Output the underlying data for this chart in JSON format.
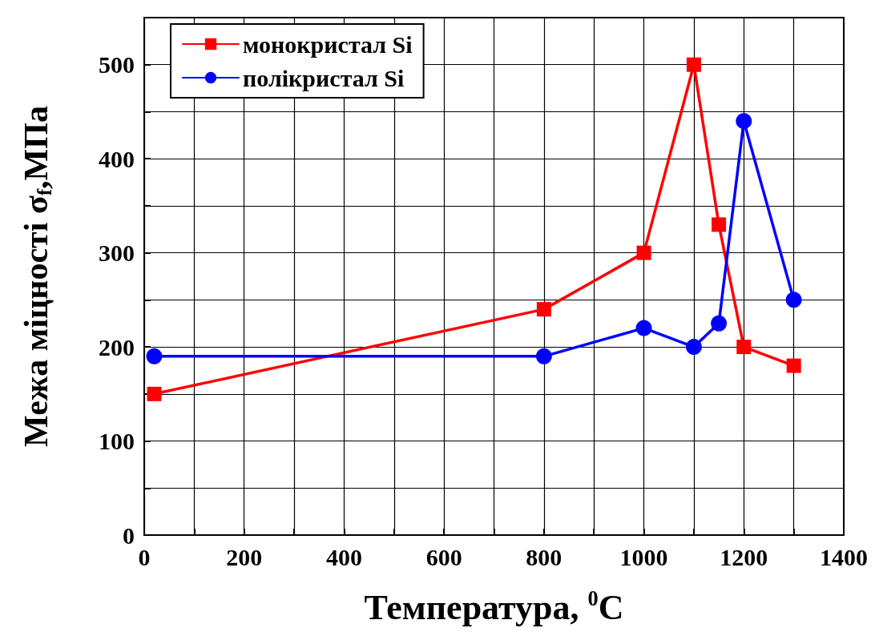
{
  "chart_data": {
    "type": "line",
    "xlabel": "Температура, $^{0}$C",
    "ylabel": "Межа міцності σ$_{f}$,МПа",
    "series": [
      {
        "name": "монокристал Si",
        "color": "#ff0000",
        "marker": "square",
        "x": [
          20,
          800,
          1000,
          1100,
          1150,
          1200,
          1300
        ],
        "values": [
          150,
          240,
          300,
          500,
          330,
          200,
          180
        ]
      },
      {
        "name": "полікристал Si",
        "color": "#0000ff",
        "marker": "circle",
        "x": [
          20,
          800,
          1000,
          1100,
          1150,
          1200,
          1300
        ],
        "values": [
          190,
          190,
          220,
          200,
          225,
          440,
          250
        ]
      }
    ],
    "xlim": [
      0,
      1400
    ],
    "xticks": [
      0,
      {
        "value": 100,
        "label": null
      },
      200,
      {
        "value": 300,
        "label": null
      },
      400,
      {
        "value": 500,
        "label": null
      },
      600,
      {
        "value": 700,
        "label": null
      },
      800,
      {
        "value": 900,
        "label": null
      },
      1000,
      {
        "value": 1100,
        "label": null
      },
      1200,
      {
        "value": 1300,
        "label": null
      },
      1400
    ],
    "ylim": [
      0,
      550
    ],
    "yticks": [
      0,
      {
        "value": 50,
        "label": null
      },
      100,
      {
        "value": 150,
        "label": null
      },
      200,
      {
        "value": 250,
        "label": null
      },
      300,
      {
        "value": 350,
        "label": null
      },
      400,
      {
        "value": 450,
        "label": null
      },
      500,
      {
        "value": 550,
        "label": null
      }
    ],
    "grid": true,
    "legend": "top left",
    "line_style": "solid"
  }
}
